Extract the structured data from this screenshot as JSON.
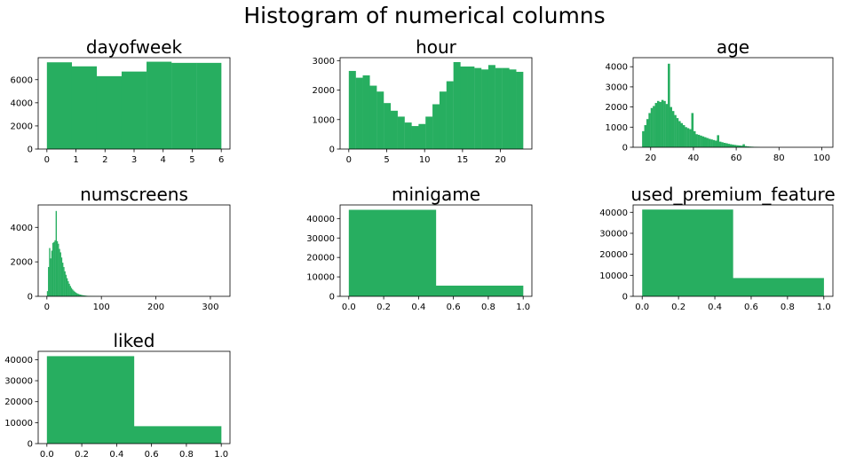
{
  "figure": {
    "title": "Histogram of numerical columns",
    "bar_color": "#27ae60"
  },
  "chart_data": [
    {
      "type": "bar",
      "title": "dayofweek",
      "xlabel": "",
      "ylabel": "",
      "xlim": [
        -0.3,
        6.3
      ],
      "ylim": [
        0,
        7900
      ],
      "xticks": [
        0,
        1,
        2,
        3,
        4,
        5,
        6
      ],
      "yticks": [
        0,
        2000,
        4000,
        6000
      ],
      "bins": [
        [
          0.0,
          0.857,
          7500
        ],
        [
          0.857,
          1.714,
          7150
        ],
        [
          1.714,
          2.571,
          6300
        ],
        [
          2.571,
          3.429,
          6700
        ],
        [
          3.429,
          4.286,
          7550
        ],
        [
          4.286,
          5.143,
          7450
        ],
        [
          5.143,
          6.0,
          7450
        ]
      ]
    },
    {
      "type": "bar",
      "title": "hour",
      "xlabel": "",
      "ylabel": "",
      "xlim": [
        -1.15,
        24.15
      ],
      "ylim": [
        0,
        3100
      ],
      "xticks": [
        0,
        5,
        10,
        15,
        20
      ],
      "yticks": [
        0,
        1000,
        2000,
        3000
      ],
      "bins": [
        [
          0,
          0.92,
          2650
        ],
        [
          0.92,
          1.84,
          2420
        ],
        [
          1.84,
          2.76,
          2500
        ],
        [
          2.76,
          3.68,
          2150
        ],
        [
          3.68,
          4.6,
          1950
        ],
        [
          4.6,
          5.52,
          1560
        ],
        [
          5.52,
          6.44,
          1300
        ],
        [
          6.44,
          7.36,
          1100
        ],
        [
          7.36,
          8.28,
          900
        ],
        [
          8.28,
          9.2,
          780
        ],
        [
          9.2,
          10.12,
          850
        ],
        [
          10.12,
          11.04,
          1100
        ],
        [
          11.04,
          11.96,
          1520
        ],
        [
          11.96,
          12.88,
          1950
        ],
        [
          12.88,
          13.8,
          2300
        ],
        [
          13.8,
          14.72,
          2950
        ],
        [
          14.72,
          15.64,
          2800
        ],
        [
          15.64,
          16.56,
          2800
        ],
        [
          16.56,
          17.48,
          2750
        ],
        [
          17.48,
          18.4,
          2700
        ],
        [
          18.4,
          19.32,
          2850
        ],
        [
          19.32,
          20.24,
          2750
        ],
        [
          20.24,
          21.16,
          2750
        ],
        [
          21.16,
          22.08,
          2700
        ],
        [
          22.08,
          23.0,
          2620
        ]
      ]
    },
    {
      "type": "bar",
      "title": "age",
      "xlabel": "",
      "ylabel": "",
      "xlim": [
        11.8,
        105.2
      ],
      "ylim": [
        0,
        4450
      ],
      "xticks": [
        20,
        40,
        60,
        80,
        100
      ],
      "yticks": [
        0,
        1000,
        2000,
        3000,
        4000
      ],
      "bins": [
        [
          16,
          17,
          800
        ],
        [
          17,
          18,
          1100
        ],
        [
          18,
          19,
          1400
        ],
        [
          19,
          20,
          1700
        ],
        [
          20,
          21,
          1950
        ],
        [
          21,
          22,
          2050
        ],
        [
          22,
          23,
          2200
        ],
        [
          23,
          24,
          2300
        ],
        [
          24,
          25,
          2250
        ],
        [
          25,
          26,
          2350
        ],
        [
          26,
          27,
          2300
        ],
        [
          27,
          28,
          2150
        ],
        [
          28,
          29,
          4150
        ],
        [
          29,
          30,
          2000
        ],
        [
          30,
          31,
          1800
        ],
        [
          31,
          32,
          1600
        ],
        [
          32,
          33,
          1450
        ],
        [
          33,
          34,
          1300
        ],
        [
          34,
          35,
          1200
        ],
        [
          35,
          36,
          1100
        ],
        [
          36,
          37,
          1000
        ],
        [
          37,
          38,
          950
        ],
        [
          38,
          39,
          900
        ],
        [
          39,
          40,
          1700
        ],
        [
          40,
          41,
          800
        ],
        [
          41,
          42,
          650
        ],
        [
          42,
          43,
          620
        ],
        [
          43,
          44,
          580
        ],
        [
          44,
          45,
          540
        ],
        [
          45,
          46,
          500
        ],
        [
          46,
          47,
          460
        ],
        [
          47,
          48,
          420
        ],
        [
          48,
          49,
          390
        ],
        [
          49,
          50,
          360
        ],
        [
          50,
          51,
          330
        ],
        [
          51,
          52,
          600
        ],
        [
          52,
          53,
          280
        ],
        [
          53,
          54,
          250
        ],
        [
          54,
          55,
          220
        ],
        [
          55,
          56,
          200
        ],
        [
          56,
          57,
          170
        ],
        [
          57,
          58,
          150
        ],
        [
          58,
          59,
          130
        ],
        [
          59,
          60,
          115
        ],
        [
          60,
          61,
          100
        ],
        [
          61,
          62,
          90
        ],
        [
          62,
          63,
          80
        ],
        [
          63,
          64,
          150
        ],
        [
          64,
          65,
          60
        ],
        [
          65,
          66,
          45
        ],
        [
          66,
          67,
          35
        ],
        [
          67,
          68,
          28
        ],
        [
          68,
          69,
          22
        ],
        [
          69,
          70,
          18
        ],
        [
          70,
          71,
          12
        ]
      ]
    },
    {
      "type": "bar",
      "title": "numscreens",
      "xlabel": "",
      "ylabel": "",
      "xlim": [
        -16,
        336
      ],
      "ylim": [
        0,
        5300
      ],
      "xticks": [
        0,
        100,
        200,
        300
      ],
      "yticks": [
        0,
        2000,
        4000
      ],
      "bins": [
        [
          0,
          2,
          300
        ],
        [
          2,
          4,
          1700
        ],
        [
          4,
          6,
          2800
        ],
        [
          6,
          8,
          2200
        ],
        [
          8,
          10,
          2650
        ],
        [
          10,
          12,
          3100
        ],
        [
          12,
          14,
          3150
        ],
        [
          14,
          16,
          3250
        ],
        [
          16,
          18,
          4950
        ],
        [
          18,
          20,
          3200
        ],
        [
          20,
          22,
          3050
        ],
        [
          22,
          24,
          2750
        ],
        [
          24,
          26,
          2550
        ],
        [
          26,
          28,
          2250
        ],
        [
          28,
          30,
          1950
        ],
        [
          30,
          32,
          1700
        ],
        [
          32,
          34,
          1450
        ],
        [
          34,
          36,
          1250
        ],
        [
          36,
          38,
          1050
        ],
        [
          38,
          40,
          880
        ],
        [
          40,
          42,
          730
        ],
        [
          42,
          44,
          600
        ],
        [
          44,
          46,
          490
        ],
        [
          46,
          48,
          400
        ],
        [
          48,
          50,
          330
        ],
        [
          50,
          52,
          270
        ],
        [
          52,
          54,
          220
        ],
        [
          54,
          56,
          180
        ],
        [
          56,
          58,
          150
        ],
        [
          58,
          60,
          120
        ],
        [
          60,
          62,
          100
        ],
        [
          62,
          64,
          85
        ],
        [
          64,
          66,
          70
        ],
        [
          66,
          68,
          58
        ],
        [
          68,
          70,
          48
        ],
        [
          70,
          72,
          40
        ],
        [
          72,
          74,
          32
        ],
        [
          74,
          76,
          26
        ],
        [
          76,
          78,
          21
        ],
        [
          78,
          80,
          17
        ],
        [
          80,
          84,
          14
        ],
        [
          84,
          88,
          11
        ],
        [
          88,
          94,
          8
        ],
        [
          94,
          100,
          6
        ]
      ]
    },
    {
      "type": "bar",
      "title": "minigame",
      "xlabel": "",
      "ylabel": "",
      "xlim": [
        -0.05,
        1.05
      ],
      "ylim": [
        0,
        47000
      ],
      "xticks": [
        0.0,
        0.2,
        0.4,
        0.6,
        0.8,
        1.0
      ],
      "yticks": [
        0,
        10000,
        20000,
        30000,
        40000
      ],
      "bins": [
        [
          0.0,
          0.5,
          44500
        ],
        [
          0.5,
          1.0,
          5500
        ]
      ]
    },
    {
      "type": "bar",
      "title": "used_premium_feature",
      "xlabel": "",
      "ylabel": "",
      "xlim": [
        -0.05,
        1.05
      ],
      "ylim": [
        0,
        43500
      ],
      "xticks": [
        0.0,
        0.2,
        0.4,
        0.6,
        0.8,
        1.0
      ],
      "yticks": [
        0,
        10000,
        20000,
        30000,
        40000
      ],
      "bins": [
        [
          0.0,
          0.5,
          41300
        ],
        [
          0.5,
          1.0,
          8700
        ]
      ]
    },
    {
      "type": "bar",
      "title": "liked",
      "xlabel": "",
      "ylabel": "",
      "xlim": [
        -0.05,
        1.05
      ],
      "ylim": [
        0,
        44000
      ],
      "xticks": [
        0.0,
        0.2,
        0.4,
        0.6,
        0.8,
        1.0
      ],
      "yticks": [
        0,
        10000,
        20000,
        30000,
        40000
      ],
      "bins": [
        [
          0.0,
          0.5,
          41700
        ],
        [
          0.5,
          1.0,
          8300
        ]
      ]
    }
  ]
}
